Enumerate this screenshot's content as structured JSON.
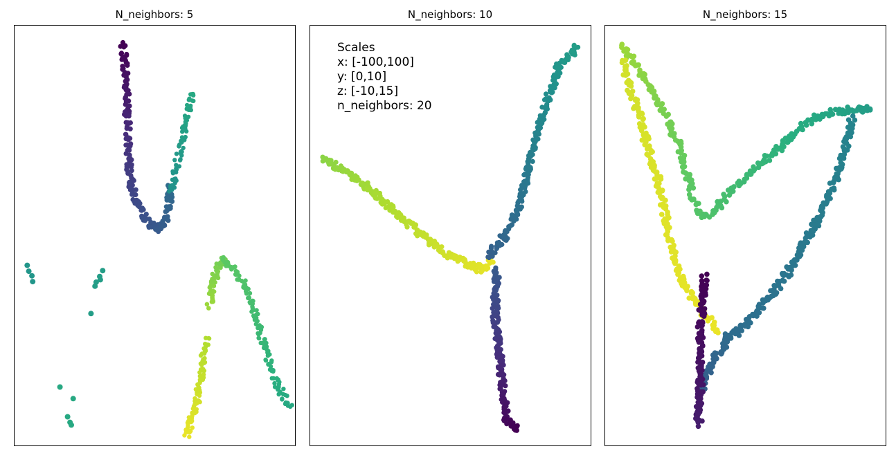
{
  "palette": {
    "stops": [
      "#440154",
      "#472d7b",
      "#3b528b",
      "#2c728e",
      "#21918c",
      "#28ae80",
      "#5ec962",
      "#addc30",
      "#fde725"
    ]
  },
  "chart_data": [
    {
      "type": "scatter",
      "title": "N_neighbors: 5",
      "xlim": [
        0,
        100
      ],
      "ylim": [
        0,
        100
      ],
      "grid": false,
      "axes_visible": false,
      "strokes": [
        {
          "pts": [
            [
              38.5,
              95.5
            ],
            [
              39.5,
              90
            ],
            [
              40,
              84
            ],
            [
              40.3,
              78
            ],
            [
              40.5,
              72
            ],
            [
              41,
              66
            ],
            [
              42,
              61
            ],
            [
              44.5,
              56
            ],
            [
              48,
              53
            ],
            [
              51,
              51.5
            ],
            [
              53.5,
              53
            ],
            [
              55,
              57
            ],
            [
              55.5,
              62
            ]
          ],
          "c": [
            0.0,
            0.35
          ],
          "r": 3.6,
          "n": 190
        },
        {
          "pts": [
            [
              56,
              60
            ],
            [
              57.5,
              66
            ],
            [
              59.5,
              72
            ],
            [
              61.5,
              78
            ],
            [
              63.5,
              84
            ]
          ],
          "c": [
            0.5,
            0.6
          ],
          "r": 3.2,
          "n": 70
        },
        {
          "pts": [
            [
              61.5,
              2.3
            ],
            [
              63,
              5.8
            ],
            [
              65,
              10
            ],
            [
              66,
              14
            ],
            [
              67,
              18
            ],
            [
              67.5,
              21.5
            ],
            [
              68.5,
              25.5
            ]
          ],
          "c": [
            0.97,
            0.88
          ],
          "r": 3.2,
          "n": 90
        },
        {
          "pts": [
            [
              69.5,
              33.5
            ],
            [
              70.5,
              38
            ],
            [
              72.5,
              42
            ],
            [
              74.5,
              44.5
            ]
          ],
          "c": [
            0.85,
            0.78
          ],
          "r": 3.3,
          "n": 50
        },
        {
          "pts": [
            [
              74.5,
              44.5
            ],
            [
              78,
              42
            ],
            [
              81,
              39
            ],
            [
              84,
              35
            ],
            [
              86.5,
              30
            ],
            [
              89,
              24
            ],
            [
              91,
              19
            ],
            [
              93.5,
              15
            ],
            [
              95.5,
              12
            ],
            [
              98,
              9.2
            ]
          ],
          "c": [
            0.75,
            0.6
          ],
          "r": 3.2,
          "n": 130
        },
        {
          "pts": [
            [
              4.5,
              43
            ],
            [
              5.5,
              41
            ],
            [
              6,
              39.5
            ]
          ],
          "c": [
            0.52,
            0.52
          ],
          "r": 4,
          "n": 4
        },
        {
          "pts": [
            [
              29,
              38
            ],
            [
              30.5,
              40
            ],
            [
              31.5,
              41.5
            ]
          ],
          "c": [
            0.55,
            0.55
          ],
          "r": 4,
          "n": 5
        },
        {
          "pts": [
            [
              27.5,
              31.5
            ]
          ],
          "c": [
            0.55,
            0.55
          ],
          "r": 4,
          "n": 1
        },
        {
          "pts": [
            [
              16.5,
              13.5
            ],
            [
              21,
              11.5
            ]
          ],
          "c": [
            0.6,
            0.6
          ],
          "r": 4,
          "n": 2
        },
        {
          "pts": [
            [
              19.5,
              6.5
            ],
            [
              20.5,
              4.5
            ]
          ],
          "c": [
            0.6,
            0.6
          ],
          "r": 4,
          "n": 3
        }
      ]
    },
    {
      "type": "scatter",
      "title": "N_neighbors: 10",
      "xlim": [
        0,
        100
      ],
      "ylim": [
        0,
        100
      ],
      "grid": false,
      "axes_visible": false,
      "strokes": [
        {
          "pts": [
            [
              4.5,
              68.5
            ],
            [
              12,
              65.5
            ],
            [
              20,
              61.5
            ],
            [
              27,
              57.5
            ],
            [
              34,
              53.5
            ],
            [
              41,
              49.5
            ],
            [
              48,
              46
            ],
            [
              55,
              43.5
            ],
            [
              61,
              42
            ],
            [
              64,
              43
            ],
            [
              64.5,
              45.5
            ]
          ],
          "c": [
            0.82,
            0.97
          ],
          "r": 3.6,
          "n": 230
        },
        {
          "pts": [
            [
              63,
              45
            ],
            [
              66,
              47
            ],
            [
              68.5,
              49
            ],
            [
              71,
              52
            ],
            [
              73.5,
              55.5
            ],
            [
              75.5,
              60
            ],
            [
              77.5,
              65
            ],
            [
              79,
              70
            ],
            [
              81,
              75
            ],
            [
              83.5,
              80
            ],
            [
              86,
              85
            ],
            [
              88.5,
              90
            ],
            [
              95,
              95
            ]
          ],
          "c": [
            0.3,
            0.55
          ],
          "r": 3.6,
          "n": 230
        },
        {
          "pts": [
            [
              66.5,
              42
            ],
            [
              66,
              36
            ],
            [
              66,
              30
            ],
            [
              67,
              24
            ],
            [
              68,
              18
            ],
            [
              69,
              12
            ],
            [
              70,
              6
            ],
            [
              73.5,
              4
            ]
          ],
          "c": [
            0.28,
            0.0
          ],
          "r": 3.6,
          "n": 180
        }
      ],
      "annotation": [
        "Scales",
        "x: [-100,100]",
        "y: [0,10]",
        "z: [-10,15]",
        "n_neighbors: 20"
      ]
    },
    {
      "type": "scatter",
      "title": "N_neighbors: 15",
      "xlim": [
        0,
        100
      ],
      "ylim": [
        0,
        100
      ],
      "grid": false,
      "axes_visible": false,
      "strokes": [
        {
          "pts": [
            [
              5.5,
              95
            ],
            [
              8,
              93.5
            ],
            [
              12,
              90
            ],
            [
              17,
              84
            ],
            [
              22,
              78
            ],
            [
              26,
              72
            ],
            [
              28.5,
              66
            ],
            [
              31,
              60
            ],
            [
              33.5,
              55.5
            ],
            [
              36,
              54.5
            ],
            [
              40.5,
              57
            ],
            [
              46,
              61.5
            ],
            [
              53,
              65.5
            ],
            [
              60,
              69.5
            ],
            [
              67,
              74
            ],
            [
              74,
              78
            ],
            [
              81,
              79.5
            ],
            [
              89,
              80
            ],
            [
              95,
              80.5
            ]
          ],
          "c": [
            0.85,
            0.55
          ],
          "r": 3.8,
          "n": 260
        },
        {
          "pts": [
            [
              6.5,
              92
            ],
            [
              7.5,
              88
            ],
            [
              9.5,
              84
            ],
            [
              12,
              79
            ],
            [
              14,
              74
            ],
            [
              16,
              69
            ],
            [
              19,
              63
            ],
            [
              21,
              56
            ],
            [
              23,
              49
            ],
            [
              25,
              44
            ],
            [
              28,
              39
            ],
            [
              32.5,
              34
            ],
            [
              37,
              30
            ],
            [
              40.5,
              27.5
            ]
          ],
          "c": [
            0.93,
            0.97
          ],
          "r": 3.8,
          "n": 200
        },
        {
          "pts": [
            [
              88,
              78
            ],
            [
              86,
              72
            ],
            [
              83.5,
              66
            ],
            [
              80,
              60
            ],
            [
              76,
              54
            ],
            [
              71,
              48
            ],
            [
              65,
              41
            ],
            [
              58,
              35
            ],
            [
              52,
              30
            ],
            [
              47,
              27
            ],
            [
              44,
              26
            ],
            [
              42,
              25
            ]
          ],
          "c": [
            0.45,
            0.35
          ],
          "r": 3.8,
          "n": 220
        },
        {
          "pts": [
            [
              44,
              26
            ],
            [
              42,
              23
            ],
            [
              39,
              21
            ],
            [
              37,
              18
            ],
            [
              35.5,
              15.5
            ],
            [
              34.5,
              13
            ]
          ],
          "c": [
            0.35,
            0.3
          ],
          "r": 3.8,
          "n": 50
        },
        {
          "pts": [
            [
              35.5,
              40
            ],
            [
              35,
              36
            ],
            [
              34.5,
              32
            ],
            [
              34,
              28
            ],
            [
              34,
              24
            ],
            [
              34,
              20
            ],
            [
              34,
              15
            ],
            [
              33.5,
              10
            ],
            [
              33.5,
              6
            ],
            [
              33,
              5
            ]
          ],
          "c": [
            0.0,
            0.08
          ],
          "r": 3.8,
          "n": 140
        }
      ]
    }
  ]
}
